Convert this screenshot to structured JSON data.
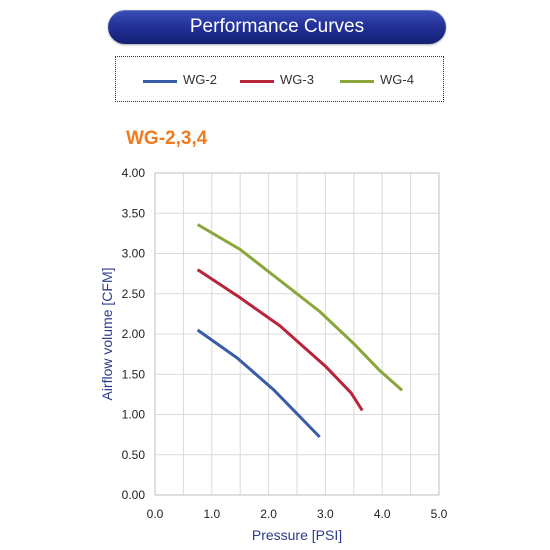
{
  "header": {
    "title": "Performance Curves"
  },
  "legend": {
    "items": [
      {
        "label": "WG-2",
        "color": "#3a5ba8"
      },
      {
        "label": "WG-3",
        "color": "#b8243a"
      },
      {
        "label": "WG-4",
        "color": "#8aa63a"
      }
    ]
  },
  "chart_data": {
    "type": "line",
    "subtitle": "WG-2,3,4",
    "xlabel": "Pressure [PSI]",
    "ylabel": "Airflow volume  [CFM]",
    "xlim": [
      0.0,
      5.0
    ],
    "ylim": [
      0.0,
      4.0
    ],
    "xticks": [
      "0.0",
      "1.0",
      "2.0",
      "3.0",
      "4.0",
      "5.0"
    ],
    "yticks": [
      "0.00",
      "0.50",
      "1.00",
      "1.50",
      "2.00",
      "2.50",
      "3.00",
      "3.50",
      "4.00"
    ],
    "grid": true,
    "series": [
      {
        "name": "WG-2",
        "color": "#3a5ba8",
        "points": [
          [
            0.75,
            2.05
          ],
          [
            1.45,
            1.7
          ],
          [
            2.1,
            1.3
          ],
          [
            2.9,
            0.72
          ]
        ]
      },
      {
        "name": "WG-3",
        "color": "#b8243a",
        "points": [
          [
            0.75,
            2.8
          ],
          [
            1.5,
            2.45
          ],
          [
            2.2,
            2.1
          ],
          [
            3.0,
            1.6
          ],
          [
            3.45,
            1.27
          ],
          [
            3.65,
            1.05
          ]
        ]
      },
      {
        "name": "WG-4",
        "color": "#8aa63a",
        "points": [
          [
            0.75,
            3.36
          ],
          [
            1.5,
            3.05
          ],
          [
            1.9,
            2.83
          ],
          [
            2.9,
            2.28
          ],
          [
            3.5,
            1.88
          ],
          [
            3.95,
            1.55
          ],
          [
            4.35,
            1.3
          ]
        ]
      }
    ]
  }
}
